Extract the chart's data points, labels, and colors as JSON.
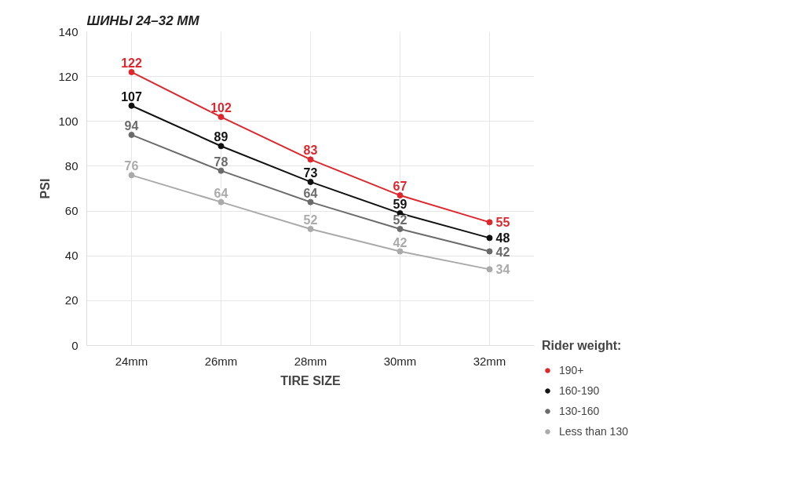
{
  "chart_data": {
    "type": "line",
    "title": "ШИНЫ 24–32 ММ",
    "xlabel": "TIRE SIZE",
    "ylabel": "PSI",
    "legend_title": "Rider weight:",
    "categories": [
      "24mm",
      "26mm",
      "28mm",
      "30mm",
      "32mm"
    ],
    "series": [
      {
        "name": "190+",
        "color": "#e0262d",
        "values": [
          122,
          102,
          83,
          67,
          55
        ]
      },
      {
        "name": "160-190",
        "color": "#111111",
        "values": [
          107,
          89,
          73,
          59,
          48
        ]
      },
      {
        "name": "130-160",
        "color": "#6b6b6b",
        "values": [
          94,
          78,
          64,
          52,
          42
        ]
      },
      {
        "name": "Less than 130",
        "color": "#aaaaaa",
        "values": [
          76,
          64,
          52,
          42,
          34
        ]
      }
    ],
    "ylim": [
      0,
      140
    ],
    "yticks": [
      0,
      20,
      40,
      60,
      80,
      100,
      120,
      140
    ],
    "grid": true,
    "legend": "right",
    "marker": "circle",
    "line_style": "solid",
    "data_labels": true
  }
}
